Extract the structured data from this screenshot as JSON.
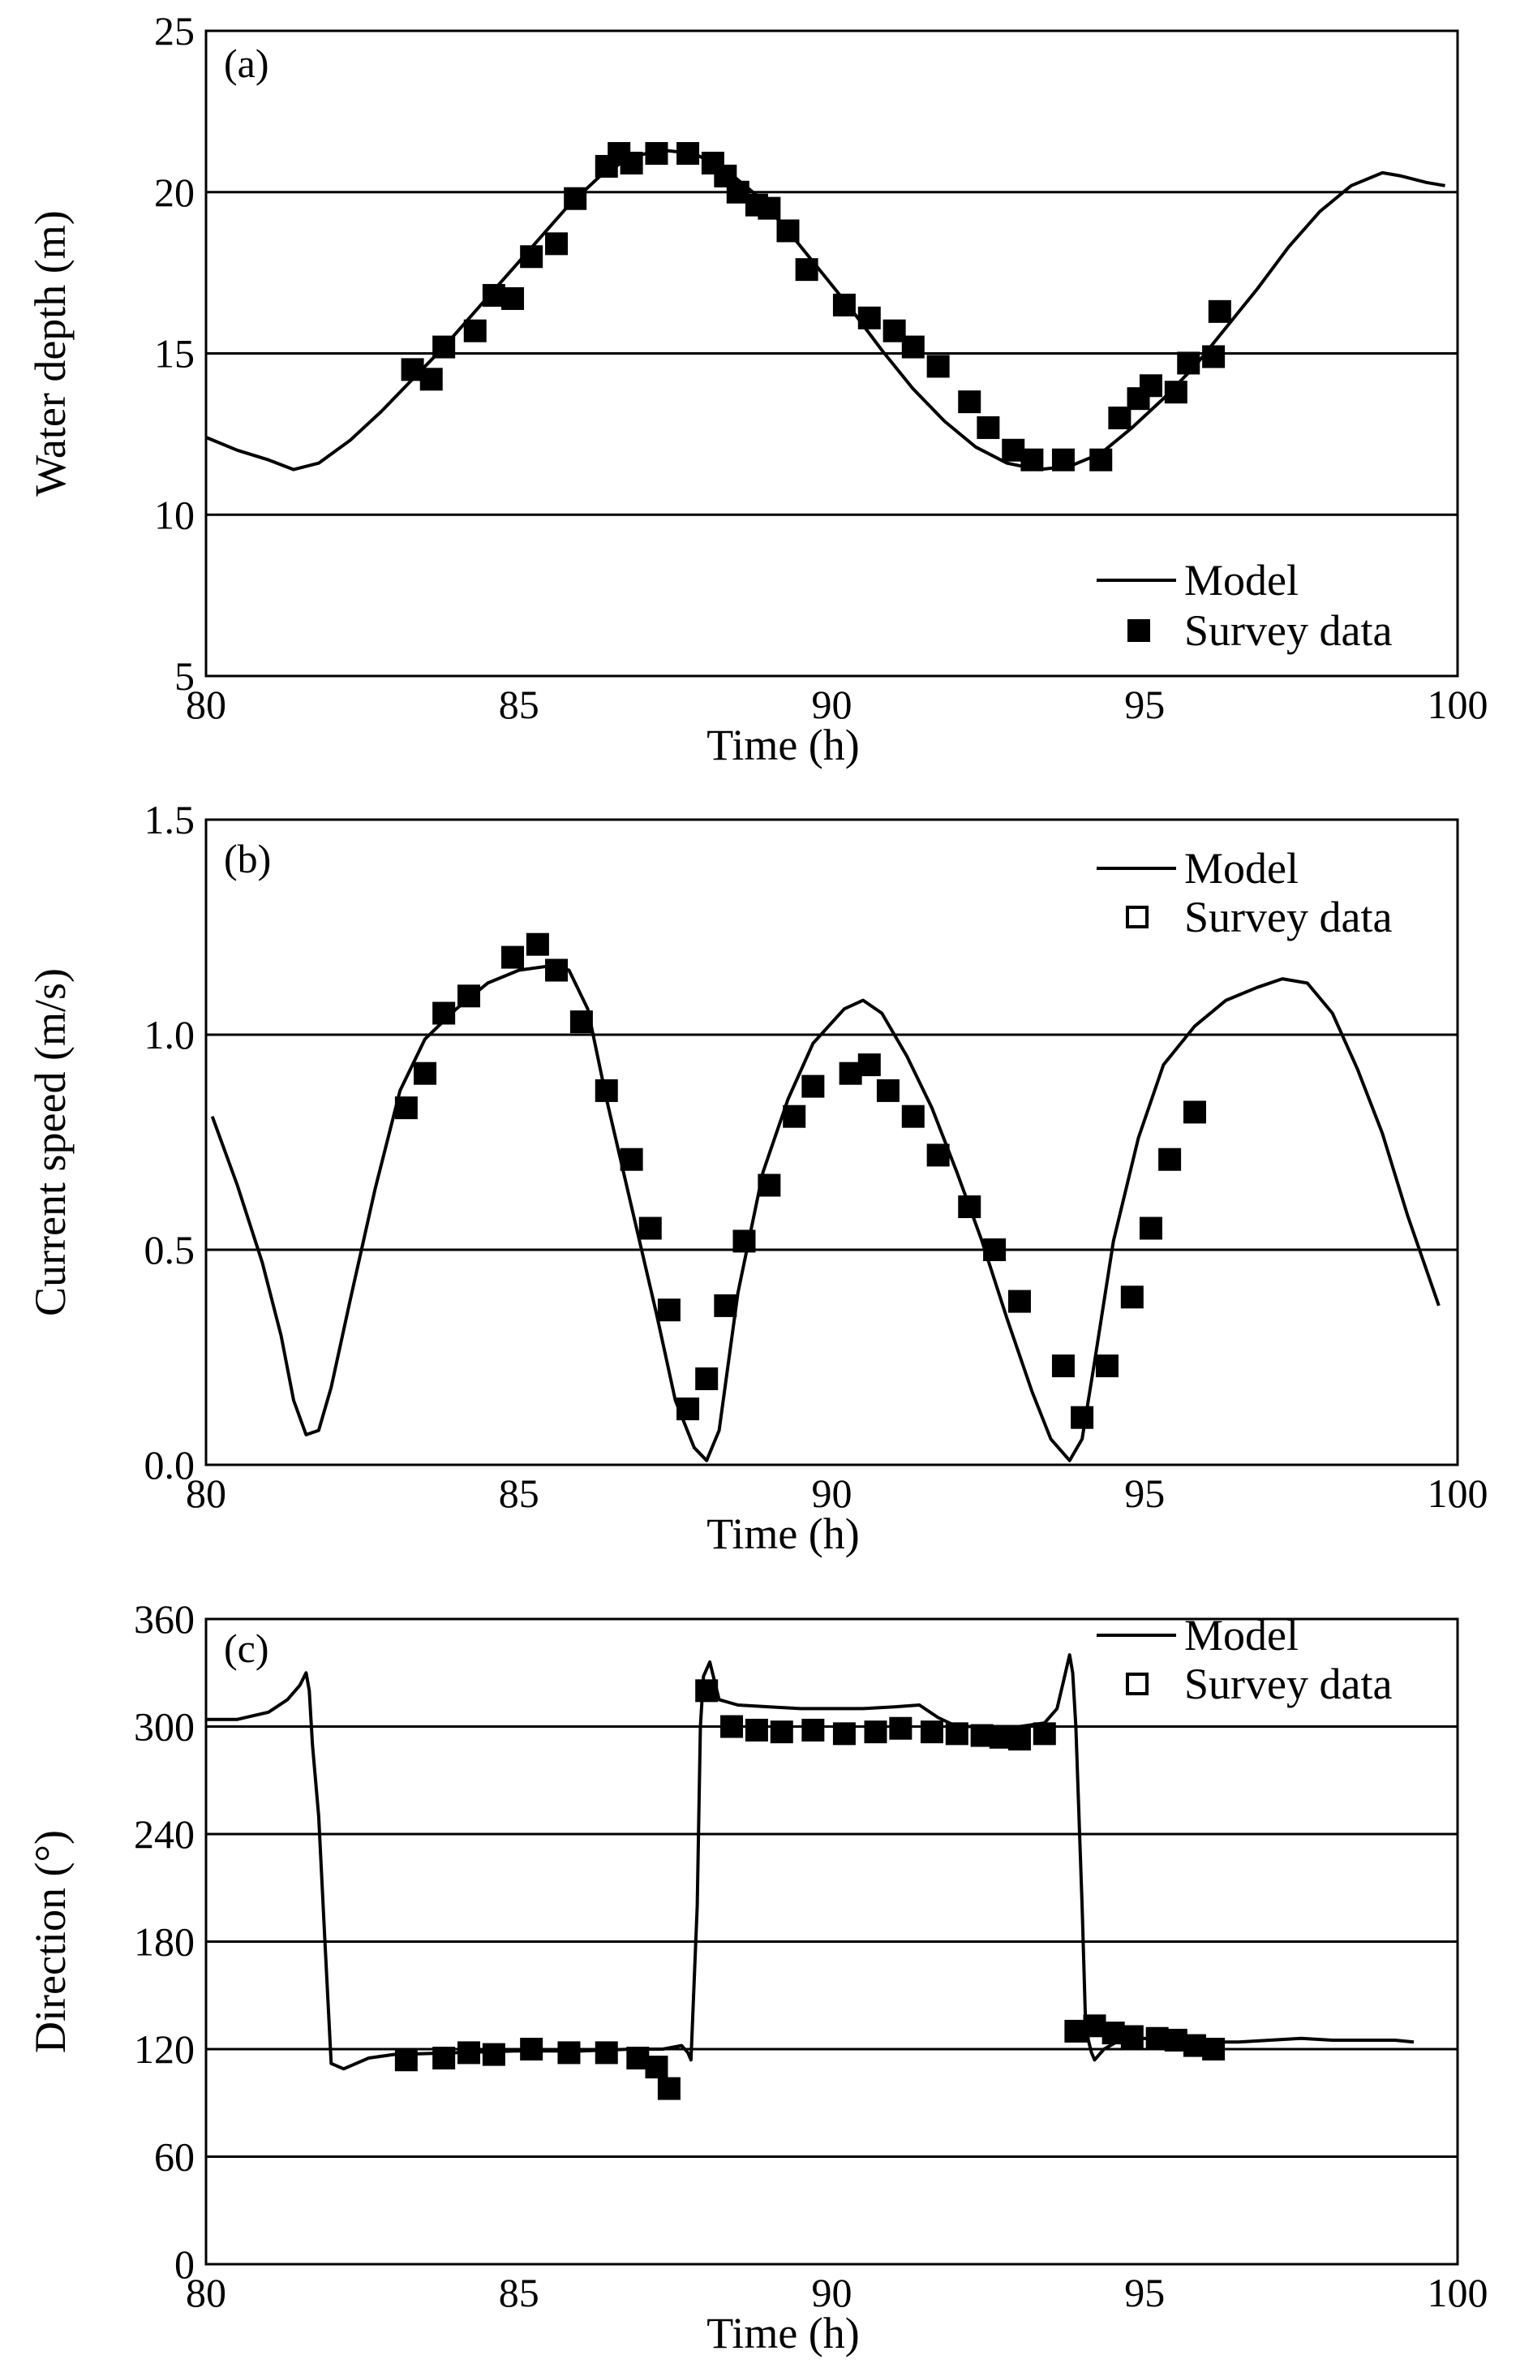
{
  "figure": {
    "colors": {
      "line": "#000000",
      "marker": "#000000",
      "grid": "#000000",
      "background": "#ffffff"
    }
  },
  "chart_data": [
    {
      "type": "line",
      "panel_label": "(a)",
      "title": "",
      "xlabel": "Time (h)",
      "ylabel": "Water depth (m)",
      "xlim": [
        80,
        100
      ],
      "ylim": [
        5,
        25
      ],
      "xticks": [
        "80",
        "85",
        "90",
        "95",
        "100"
      ],
      "yticks": [
        "5",
        "10",
        "15",
        "20",
        "25"
      ],
      "grid": "horizontal",
      "legend": {
        "placement": "bottom-right",
        "entries": [
          "Model",
          "Survey data"
        ]
      },
      "series": [
        {
          "name": "Model",
          "kind": "line",
          "x": [
            80,
            80.5,
            81,
            81.4,
            81.8,
            82.3,
            82.8,
            83.3,
            83.8,
            84.3,
            84.8,
            85.3,
            85.8,
            86.3,
            86.8,
            87.3,
            87.8,
            88.3,
            88.8,
            89.3,
            89.8,
            90.3,
            90.8,
            91.3,
            91.8,
            92.3,
            92.8,
            93.3,
            93.8,
            94.3,
            94.8,
            95.3,
            95.8,
            96.3,
            96.8,
            97.3,
            97.8,
            98.3,
            98.8,
            99.1,
            99.5,
            99.8
          ],
          "y": [
            12.4,
            12.0,
            11.7,
            11.4,
            11.6,
            12.3,
            13.2,
            14.2,
            15.2,
            16.3,
            17.4,
            18.5,
            19.6,
            20.5,
            21.1,
            21.3,
            21.2,
            20.7,
            19.9,
            18.8,
            17.6,
            16.4,
            15.1,
            13.9,
            12.9,
            12.1,
            11.6,
            11.4,
            11.5,
            11.9,
            12.7,
            13.6,
            14.6,
            15.8,
            17.0,
            18.3,
            19.4,
            20.2,
            20.6,
            20.5,
            20.3,
            20.2
          ]
        },
        {
          "name": "Survey data",
          "kind": "marker",
          "marker": "filled-square",
          "x": [
            83.3,
            83.6,
            83.8,
            84.3,
            84.6,
            84.9,
            85.2,
            85.6,
            85.9,
            86.4,
            86.6,
            86.8,
            87.2,
            87.7,
            88.1,
            88.3,
            88.5,
            88.8,
            89.0,
            89.3,
            89.6,
            90.2,
            90.6,
            91.0,
            91.3,
            91.7,
            92.2,
            92.5,
            92.9,
            93.2,
            93.7,
            94.3,
            94.6,
            94.9,
            95.1,
            95.5,
            95.7,
            96.1,
            96.2
          ],
          "y": [
            14.5,
            14.2,
            15.2,
            15.7,
            16.8,
            16.7,
            18.0,
            18.4,
            19.8,
            20.8,
            21.2,
            20.9,
            21.2,
            21.2,
            20.9,
            20.5,
            20.0,
            19.6,
            19.5,
            18.8,
            17.6,
            16.5,
            16.1,
            15.7,
            15.2,
            14.6,
            13.5,
            12.7,
            12.0,
            11.7,
            11.7,
            11.7,
            13.0,
            13.6,
            14.0,
            13.8,
            14.7,
            14.9,
            16.3
          ]
        }
      ]
    },
    {
      "type": "line",
      "panel_label": "(b)",
      "title": "",
      "xlabel": "Time (h)",
      "ylabel": "Current speed (m/s)",
      "xlim": [
        80,
        100
      ],
      "ylim": [
        0.0,
        1.5
      ],
      "xticks": [
        "80",
        "85",
        "90",
        "95",
        "100"
      ],
      "yticks": [
        "0.0",
        "0.5",
        "1.0",
        "1.5"
      ],
      "grid": "horizontal",
      "legend": {
        "placement": "top-right",
        "entries": [
          "Model",
          "Survey data"
        ]
      },
      "series": [
        {
          "name": "Model",
          "kind": "line",
          "x": [
            80.1,
            80.5,
            80.9,
            81.2,
            81.4,
            81.6,
            81.8,
            82.0,
            82.3,
            82.7,
            83.1,
            83.5,
            84.0,
            84.5,
            85.0,
            85.5,
            85.8,
            86.1,
            86.4,
            86.8,
            87.2,
            87.5,
            87.8,
            88.0,
            88.2,
            88.5,
            88.9,
            89.3,
            89.7,
            90.2,
            90.5,
            90.8,
            91.2,
            91.6,
            92.0,
            92.4,
            92.8,
            93.2,
            93.5,
            93.8,
            94.0,
            94.2,
            94.5,
            94.9,
            95.3,
            95.8,
            96.3,
            96.8,
            97.2,
            97.6,
            98.0,
            98.4,
            98.8,
            99.2,
            99.7
          ],
          "y": [
            0.81,
            0.65,
            0.47,
            0.3,
            0.15,
            0.07,
            0.08,
            0.18,
            0.38,
            0.64,
            0.87,
            0.99,
            1.06,
            1.12,
            1.15,
            1.16,
            1.15,
            1.06,
            0.85,
            0.6,
            0.35,
            0.15,
            0.04,
            0.01,
            0.08,
            0.4,
            0.68,
            0.85,
            0.98,
            1.06,
            1.08,
            1.05,
            0.95,
            0.83,
            0.68,
            0.52,
            0.34,
            0.17,
            0.06,
            0.01,
            0.06,
            0.24,
            0.52,
            0.76,
            0.93,
            1.02,
            1.08,
            1.11,
            1.13,
            1.12,
            1.05,
            0.92,
            0.77,
            0.58,
            0.37
          ]
        },
        {
          "name": "Survey data",
          "kind": "marker",
          "marker": "filled-square",
          "x": [
            83.2,
            83.5,
            83.8,
            84.2,
            84.9,
            85.3,
            85.6,
            86.0,
            86.4,
            86.8,
            87.1,
            87.4,
            87.7,
            88.0,
            88.3,
            88.6,
            89.0,
            89.4,
            89.7,
            90.3,
            90.6,
            90.9,
            91.3,
            91.7,
            92.2,
            92.6,
            93.0,
            93.7,
            94.0,
            94.4,
            94.8,
            95.1,
            95.4,
            95.8
          ],
          "y": [
            0.83,
            0.91,
            1.05,
            1.09,
            1.18,
            1.21,
            1.15,
            1.03,
            0.87,
            0.71,
            0.55,
            0.36,
            0.13,
            0.2,
            0.37,
            0.52,
            0.65,
            0.81,
            0.88,
            0.91,
            0.93,
            0.87,
            0.81,
            0.72,
            0.6,
            0.5,
            0.38,
            0.23,
            0.11,
            0.23,
            0.39,
            0.55,
            0.71,
            0.82
          ]
        }
      ]
    },
    {
      "type": "line",
      "panel_label": "(c)",
      "title": "",
      "xlabel": "Time (h)",
      "ylabel": "Direction (°)",
      "xlim": [
        80,
        100
      ],
      "ylim": [
        0,
        360
      ],
      "xticks": [
        "80",
        "85",
        "90",
        "95",
        "100"
      ],
      "yticks": [
        "0",
        "60",
        "120",
        "180",
        "240",
        "300",
        "360"
      ],
      "grid": "horizontal",
      "legend": {
        "placement": "top-right",
        "entries": [
          "Model",
          "Survey data"
        ]
      },
      "series": [
        {
          "name": "Model",
          "kind": "line",
          "x": [
            80,
            80.5,
            81,
            81.3,
            81.5,
            81.6,
            81.65,
            81.7,
            81.8,
            81.9,
            82.0,
            82.2,
            82.6,
            83.0,
            84.0,
            85.0,
            86.0,
            86.8,
            87.3,
            87.6,
            87.7,
            87.75,
            87.85,
            87.9,
            87.95,
            88.05,
            88.2,
            88.5,
            89.0,
            89.5,
            90.0,
            90.5,
            91.0,
            91.4,
            91.7,
            92.0,
            92.5,
            93.0,
            93.4,
            93.6,
            93.7,
            93.8,
            93.85,
            93.9,
            94.0,
            94.05,
            94.1,
            94.15,
            94.2,
            94.35,
            94.6,
            95.0,
            95.5,
            96.0,
            96.5,
            97.0,
            97.5,
            98.0,
            99.0,
            99.3
          ],
          "y": [
            304,
            304,
            308,
            315,
            323,
            330,
            320,
            290,
            250,
            180,
            112,
            109,
            115,
            117,
            118,
            119,
            119,
            120,
            120,
            122,
            118,
            114,
            200,
            300,
            328,
            336,
            315,
            312,
            311,
            310,
            310,
            310,
            311,
            312,
            305,
            300,
            300,
            300,
            302,
            310,
            325,
            340,
            330,
            300,
            200,
            140,
            125,
            118,
            114,
            120,
            125,
            126,
            125,
            124,
            124,
            125,
            126,
            125,
            125,
            124
          ]
        },
        {
          "name": "Survey data",
          "kind": "marker",
          "marker": "filled-square",
          "x": [
            83.2,
            83.8,
            84.2,
            84.6,
            85.2,
            85.8,
            86.4,
            86.9,
            87.2,
            87.4,
            88.0,
            88.4,
            88.8,
            89.2,
            89.7,
            90.2,
            90.7,
            91.1,
            91.6,
            92.0,
            92.4,
            92.7,
            93.0,
            93.4,
            93.9,
            94.2,
            94.5,
            94.8,
            95.2,
            95.5,
            95.8,
            96.1
          ],
          "y": [
            114,
            115,
            118,
            117,
            120,
            118,
            118,
            115,
            110,
            98,
            320,
            300,
            298,
            297,
            298,
            296,
            297,
            299,
            297,
            296,
            295,
            294,
            293,
            296,
            130,
            133,
            129,
            127,
            126,
            125,
            122,
            120
          ]
        }
      ]
    }
  ]
}
